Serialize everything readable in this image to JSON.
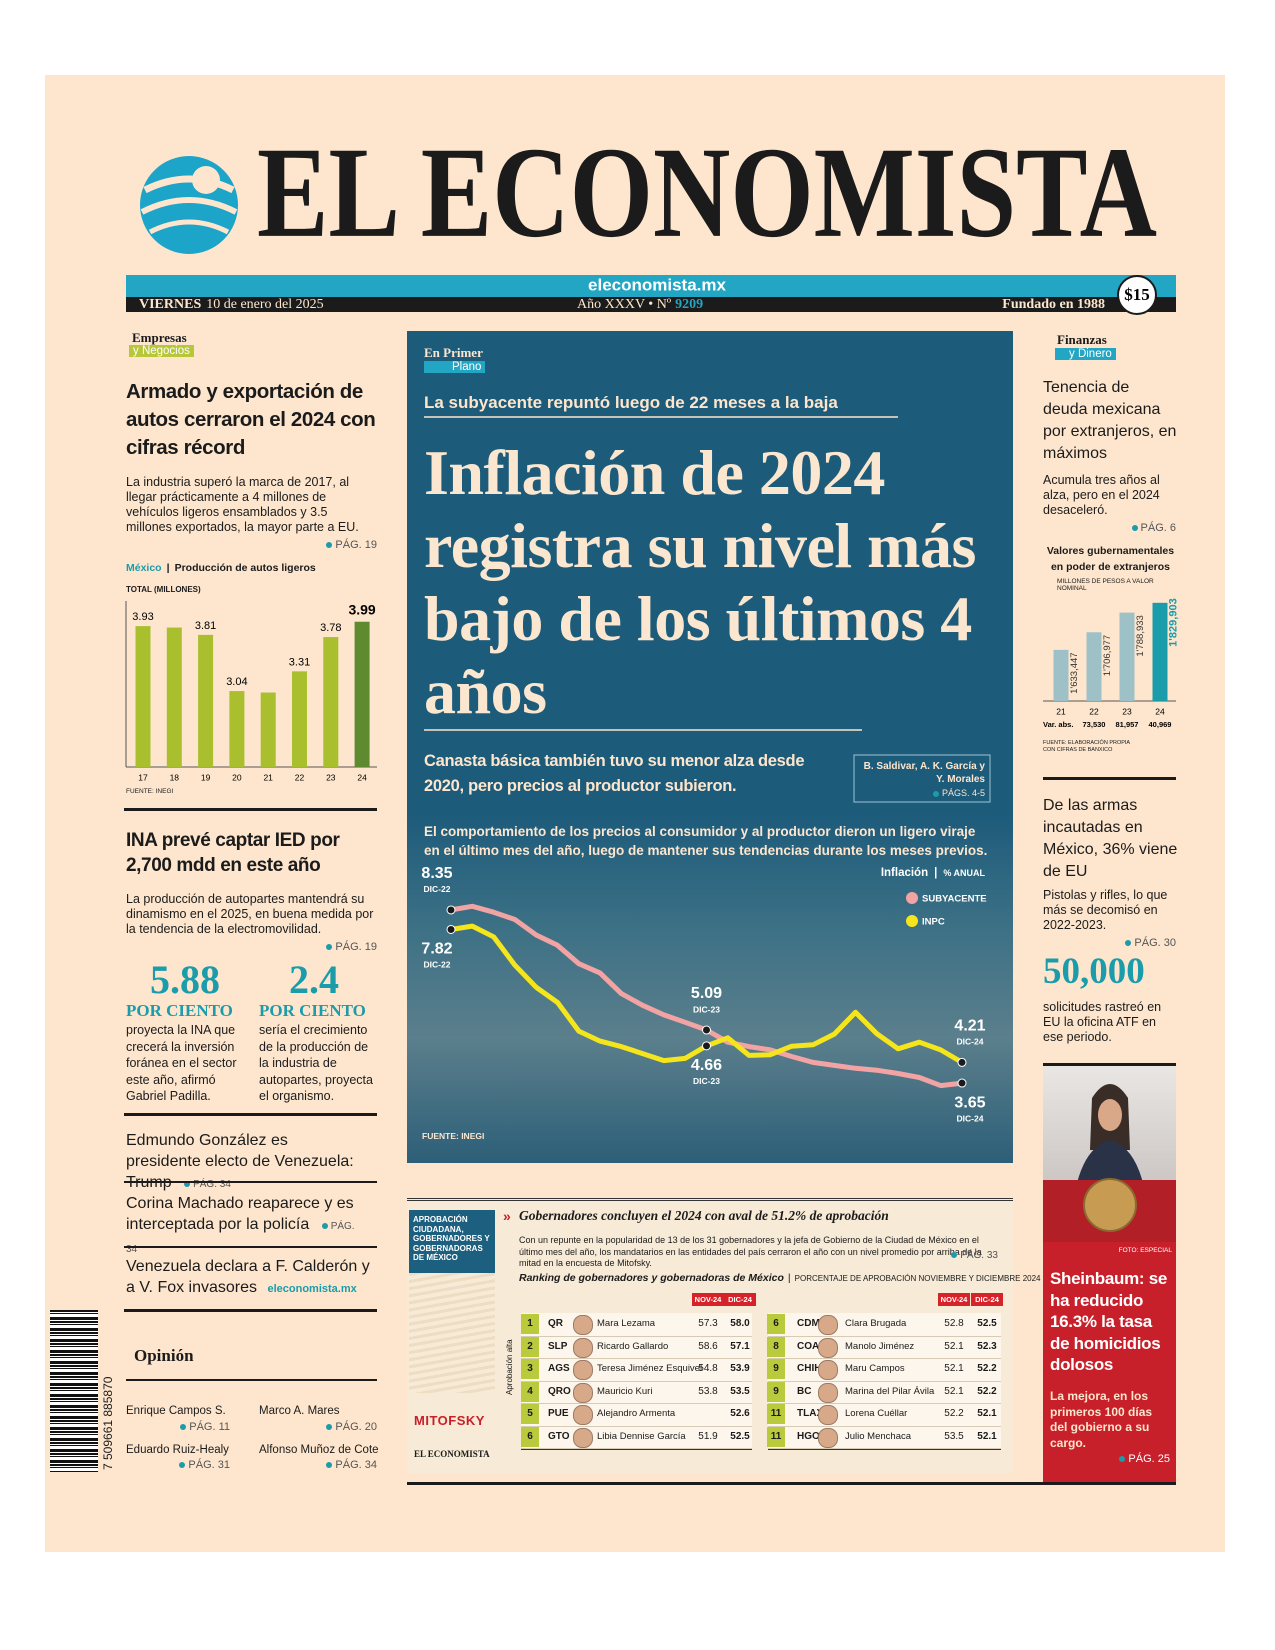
{
  "header": {
    "title": "EL ECONOMISTA",
    "url": "eleconomista.mx",
    "weekday": "VIERNES",
    "date": "10 de enero del 2025",
    "edition": "Año XXXV • Nº",
    "number": "9209",
    "founded": "Fundado en 1988",
    "price": "$15"
  },
  "left": {
    "section": "Empresas",
    "subsection": "y Negocios",
    "story1": {
      "headline": "Armado y exportación de autos cerraron el 2024 con cifras récord",
      "bullet": "La industria superó la marca de 2017, al llegar prácticamente a 4 millones de vehículos ligeros ensamblados y 3.5 millones exportados, la mayor parte a EU.",
      "page": "PÁG. 19"
    },
    "story2": {
      "headline": "INA prevé captar IED por 2,700 mdd en este año",
      "bullet": "La producción de autopartes mantendrá su dinamismo en el 2025, en buena medida por la tendencia de la electromovilidad.",
      "page": "PÁG. 19"
    },
    "stats": [
      {
        "value": "5.88",
        "unit": "POR CIENTO",
        "text": "proyecta la INA que crecerá la inversión foránea en el sector este año, afirmó Gabriel Padilla."
      },
      {
        "value": "2.4",
        "unit": "POR CIENTO",
        "text": "sería el crecimiento de la producción de la industria de autopartes, proyecta el organismo."
      }
    ],
    "briefs": [
      {
        "text": "Edmundo González es presidente electo de Venezuela: Trump",
        "page": "PÁG. 34"
      },
      {
        "text": "Corina Machado reaparece y es interceptada por la policía",
        "page": "PÁG. 34"
      },
      {
        "text": "Venezuela declara a F. Calderón y a V. Fox invasores",
        "page": "eleconomista.mx"
      }
    ],
    "opinion": {
      "title": "Opinión",
      "columnists": [
        {
          "name": "Enrique Campos S.",
          "page": "PÁG. 11"
        },
        {
          "name": "Marco A. Mares",
          "page": "PÁG. 20"
        },
        {
          "name": "Eduardo Ruiz-Healy",
          "page": "PÁG. 31"
        },
        {
          "name": "Alfonso Muñoz de Cote",
          "page": "PÁG. 34"
        }
      ]
    },
    "barcode": "7 509661 885870"
  },
  "center": {
    "section": "En Primer",
    "subsection": "Plano",
    "kicker": "La subyacente repuntó luego de 22 meses a la baja",
    "headline": "Inflación de 2024 registra su nivel más bajo de los últimos 4 años",
    "subhead": "Canasta básica también tuvo su menor alza desde 2020, pero precios al productor subieron.",
    "byline": "B. Saldivar, A. K. García y Y. Morales",
    "page": "PÁGS. 4-5"
  },
  "governors": {
    "side_label": "APROBACIÓN CIUDADANA, GOBERNADORES Y GOBERNADORAS DE MÉXICO",
    "headline": "Gobernadores concluyen el 2024 con aval de 51.2% de aprobación",
    "text": "Con un repunte en la popularidad de 13 de los 31 gobernadores y la jefa de Gobierno de la Ciudad de México en el último mes del año, los mandatarios en las entidades del país cerraron el año con un nivel promedio por arriba de la mitad en la encuesta de Mitofsky.",
    "page": "PÁG. 33",
    "table_title": "Ranking de gobernadores y gobernadoras de México",
    "table_note": "PORCENTAJE DE APROBACIÓN NOVIEMBRE Y DICIEMBRE 2024",
    "axis_label": "Aprobación alta",
    "columns": [
      "NOV-24",
      "DIC-24"
    ],
    "rows": [
      [
        "1",
        "QR",
        "Mara Lezama",
        "57.3",
        "58.0"
      ],
      [
        "2",
        "SLP",
        "Ricardo Gallardo",
        "58.6",
        "57.1"
      ],
      [
        "3",
        "AGS",
        "Teresa Jiménez Esquivel",
        "54.8",
        "53.9"
      ],
      [
        "4",
        "QRO",
        "Mauricio Kuri",
        "53.8",
        "53.5"
      ],
      [
        "5",
        "PUE",
        "Alejandro Armenta",
        null,
        "52.6"
      ],
      [
        "6",
        "GTO",
        "Libia Dennise García",
        "51.9",
        "52.5"
      ],
      [
        "6",
        "CDMX",
        "Clara Brugada",
        "52.8",
        "52.5"
      ],
      [
        "8",
        "COAH",
        "Manolo Jiménez",
        "52.1",
        "52.3"
      ],
      [
        "9",
        "CHIH",
        "Maru Campos",
        "52.1",
        "52.2"
      ],
      [
        "9",
        "BC",
        "Marina del Pilar Ávila",
        "52.1",
        "52.2"
      ],
      [
        "11",
        "TLAX",
        "Lorena Cuéllar",
        "52.2",
        "52.1"
      ],
      [
        "11",
        "HGO",
        "Julio Menchaca",
        "53.5",
        "52.1"
      ]
    ],
    "logo1": "MITOFSKY",
    "logo2": "EL ECONOMISTA"
  },
  "right": {
    "section": "Finanzas",
    "subsection": "y Dinero",
    "story1": {
      "headline": "Tenencia de deuda mexicana por extranjeros, en máximos",
      "bullet": "Acumula tres años al alza, pero en el 2024 desaceleró.",
      "page": "PÁG. 6"
    },
    "story2": {
      "headline": "De las armas incautadas en México, 36% viene de EU",
      "bullet": "Pistolas y rifles, lo que más se decomisó en 2022-2023.",
      "page": "PÁG. 30",
      "figure": "50,000",
      "figure_text": "solicitudes rastreó en EU la oficina ATF en ese periodo."
    },
    "photo_credit": "FOTO: ESPECIAL",
    "story3": {
      "headline": "Sheinbaum: se ha reducido 16.3% la tasa de homicidios dolosos",
      "bullet": "La mejora, en los primeros 100 días del gobierno a su cargo.",
      "page": "PÁG. 25"
    }
  },
  "chart_data": [
    {
      "type": "bar",
      "region": "México",
      "title": "Producción de autos ligeros",
      "subtitle": "TOTAL (MILLONES)",
      "categories": [
        "17",
        "18",
        "19",
        "20",
        "21",
        "22",
        "23",
        "24"
      ],
      "values": [
        3.93,
        3.91,
        3.81,
        3.04,
        3.02,
        3.31,
        3.78,
        3.99
      ],
      "value_labels": [
        "3.93",
        null,
        "3.81",
        "3.04",
        null,
        "3.31",
        "3.78",
        "3.99"
      ],
      "colors": [
        "#a9bf2e",
        "#a9bf2e",
        "#a9bf2e",
        "#a9bf2e",
        "#a9bf2e",
        "#a9bf2e",
        "#a9bf2e",
        "#5e8b2f"
      ],
      "ylim": [
        2,
        4
      ],
      "source": "FUENTE: INEGI"
    },
    {
      "type": "line",
      "intro": "El comportamiento de los precios al consumidor y al productor dieron un ligero viraje en el último mes del año, luego de mantener sus tendencias durante los meses previos.",
      "title": "Inflación",
      "unit": "% ANUAL",
      "categories": [
        "DIC-22",
        null,
        null,
        null,
        null,
        null,
        null,
        null,
        null,
        null,
        null,
        null,
        "DIC-23",
        null,
        null,
        null,
        null,
        null,
        null,
        null,
        null,
        null,
        null,
        null,
        "DIC-24"
      ],
      "series": [
        {
          "name": "SUBYACENTE",
          "color": "#f2a3a3",
          "values": [
            8.35,
            8.45,
            8.29,
            8.09,
            7.67,
            7.39,
            6.89,
            6.64,
            6.08,
            5.76,
            5.5,
            5.3,
            5.09,
            4.76,
            4.64,
            4.55,
            4.37,
            4.21,
            4.13,
            4.05,
            4.0,
            3.91,
            3.8,
            3.58,
            3.65
          ],
          "value_labels": [
            "8.35",
            null,
            null,
            null,
            null,
            null,
            null,
            null,
            null,
            null,
            null,
            null,
            "5.09",
            null,
            null,
            null,
            null,
            null,
            null,
            null,
            null,
            null,
            null,
            null,
            "3.65"
          ]
        },
        {
          "name": "INPC",
          "color": "#f4e51c",
          "values": [
            7.82,
            7.91,
            7.62,
            6.85,
            6.25,
            5.84,
            5.06,
            4.79,
            4.64,
            4.45,
            4.26,
            4.32,
            4.66,
            4.88,
            4.4,
            4.42,
            4.65,
            4.69,
            4.98,
            5.57,
            4.99,
            4.58,
            4.76,
            4.55,
            4.21
          ],
          "value_labels": [
            "7.82",
            null,
            null,
            null,
            null,
            null,
            null,
            null,
            null,
            null,
            null,
            null,
            "4.66",
            null,
            null,
            null,
            null,
            null,
            null,
            null,
            null,
            null,
            null,
            null,
            "4.21"
          ]
        }
      ],
      "ylim": [
        3,
        9
      ],
      "source": "FUENTE: INEGI"
    },
    {
      "type": "bar",
      "title": "Valores gubernamentales en poder de extranjeros",
      "subtitle": "MILLONES DE PESOS A VALOR NOMINAL",
      "categories": [
        "21",
        "22",
        "23",
        "24"
      ],
      "values": [
        1633447,
        1706977,
        1788933,
        1829903
      ],
      "value_labels": [
        "1'633,447",
        "1'706,977",
        "1'788,933",
        "1'829,903"
      ],
      "colors": [
        "#9ec1c7",
        "#9ec1c7",
        "#9ec1c7",
        "#1b9cab"
      ],
      "ylim": [
        1420000,
        1850000
      ],
      "change_label": "Var. abs.",
      "changes": [
        null,
        73530,
        81957,
        40969
      ],
      "change_labels": [
        null,
        "73,530",
        "81,957",
        "40,969"
      ],
      "source": "FUENTE: ELABORACIÓN PROPIA CON CIFRAS DE BANXICO"
    }
  ]
}
